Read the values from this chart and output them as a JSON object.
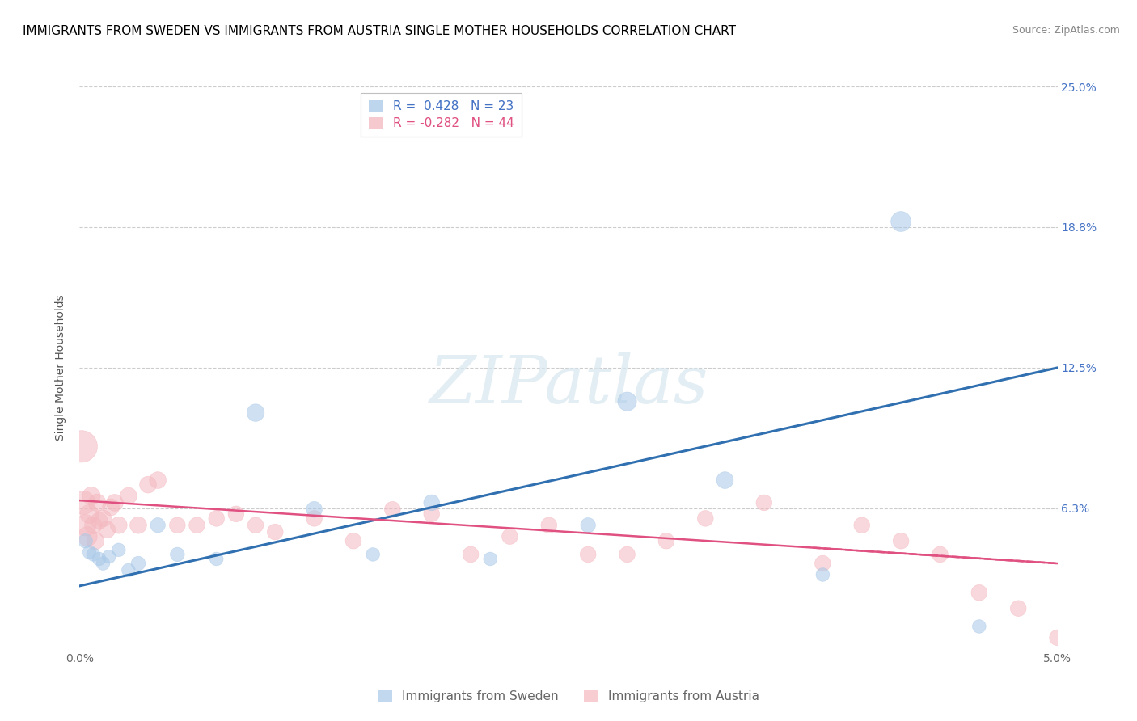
{
  "title": "IMMIGRANTS FROM SWEDEN VS IMMIGRANTS FROM AUSTRIA SINGLE MOTHER HOUSEHOLDS CORRELATION CHART",
  "source": "Source: ZipAtlas.com",
  "ylabel": "Single Mother Households",
  "xlim": [
    0.0,
    0.05
  ],
  "ylim": [
    0.0,
    0.25
  ],
  "xticks": [
    0.0,
    0.01,
    0.02,
    0.03,
    0.04,
    0.05
  ],
  "xtick_labels": [
    "0.0%",
    "",
    "",
    "",
    "",
    "5.0%"
  ],
  "yticks": [
    0.0,
    0.0625,
    0.125,
    0.1875,
    0.25
  ],
  "ytick_labels_right": [
    "",
    "6.3%",
    "12.5%",
    "18.8%",
    "25.0%"
  ],
  "sweden_R": 0.428,
  "sweden_N": 23,
  "austria_R": -0.282,
  "austria_N": 44,
  "sweden_color": "#a8c8e8",
  "austria_color": "#f4b8c0",
  "sweden_line_color": "#3070b0",
  "austria_line_color": "#e05080",
  "sweden_scatter_x": [
    0.0003,
    0.0005,
    0.0007,
    0.001,
    0.0012,
    0.0015,
    0.002,
    0.0025,
    0.003,
    0.004,
    0.005,
    0.007,
    0.009,
    0.012,
    0.015,
    0.018,
    0.021,
    0.026,
    0.028,
    0.033,
    0.038,
    0.042,
    0.046
  ],
  "sweden_scatter_y": [
    0.048,
    0.043,
    0.042,
    0.04,
    0.038,
    0.041,
    0.044,
    0.035,
    0.038,
    0.055,
    0.042,
    0.04,
    0.105,
    0.062,
    0.042,
    0.065,
    0.04,
    0.055,
    0.11,
    0.075,
    0.033,
    0.19,
    0.01
  ],
  "sweden_scatter_size": [
    20,
    18,
    18,
    18,
    18,
    18,
    18,
    18,
    20,
    22,
    20,
    18,
    30,
    25,
    18,
    25,
    18,
    22,
    35,
    28,
    18,
    40,
    18
  ],
  "austria_scatter_x": [
    0.0001,
    0.0002,
    0.0003,
    0.0004,
    0.0005,
    0.0006,
    0.0007,
    0.0008,
    0.0009,
    0.001,
    0.0012,
    0.0014,
    0.0016,
    0.0018,
    0.002,
    0.0025,
    0.003,
    0.0035,
    0.004,
    0.005,
    0.006,
    0.007,
    0.008,
    0.009,
    0.01,
    0.012,
    0.014,
    0.016,
    0.018,
    0.02,
    0.022,
    0.024,
    0.026,
    0.028,
    0.03,
    0.032,
    0.035,
    0.038,
    0.04,
    0.042,
    0.044,
    0.046,
    0.048,
    0.05
  ],
  "austria_scatter_y": [
    0.09,
    0.065,
    0.055,
    0.05,
    0.06,
    0.068,
    0.055,
    0.048,
    0.065,
    0.057,
    0.058,
    0.053,
    0.063,
    0.065,
    0.055,
    0.068,
    0.055,
    0.073,
    0.075,
    0.055,
    0.055,
    0.058,
    0.06,
    0.055,
    0.052,
    0.058,
    0.048,
    0.062,
    0.06,
    0.042,
    0.05,
    0.055,
    0.042,
    0.042,
    0.048,
    0.058,
    0.065,
    0.038,
    0.055,
    0.048,
    0.042,
    0.025,
    0.018,
    0.005
  ],
  "austria_scatter_size": [
    100,
    55,
    45,
    38,
    35,
    32,
    30,
    30,
    30,
    28,
    28,
    28,
    28,
    28,
    28,
    28,
    28,
    28,
    28,
    25,
    25,
    25,
    25,
    25,
    25,
    25,
    25,
    25,
    25,
    25,
    25,
    25,
    25,
    25,
    25,
    25,
    25,
    25,
    25,
    25,
    25,
    25,
    25,
    25
  ],
  "sweden_line_x0": 0.0,
  "sweden_line_y0": 0.028,
  "sweden_line_x1": 0.05,
  "sweden_line_y1": 0.125,
  "austria_line_x0": 0.0,
  "austria_line_y0": 0.066,
  "austria_line_x1": 0.05,
  "austria_line_y1": 0.038,
  "watermark_text": "ZIPatlas",
  "background_color": "#ffffff",
  "grid_color": "#cccccc",
  "title_fontsize": 11,
  "axis_label_fontsize": 10,
  "tick_fontsize": 10
}
